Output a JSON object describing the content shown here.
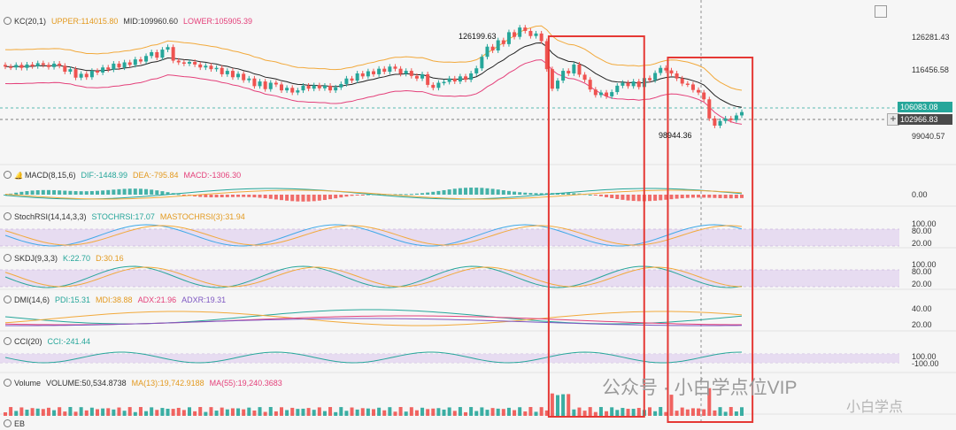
{
  "colors": {
    "up": "#26a69a",
    "down": "#ef5350",
    "kc_upper": "#f2a93b",
    "kc_mid": "#222222",
    "kc_lower": "#e4407a",
    "highlight_box": "#e53935",
    "dif": "#26a69a",
    "dea": "#f2a93b",
    "rsi_k": "#3fa9e8",
    "rsi_d": "#f2a93b",
    "skdj_k": "#26a69a",
    "skdj_d": "#f2a93b",
    "pdi": "#26a69a",
    "mdi": "#f2a93b",
    "adx": "#e4407a",
    "adxr": "#7e57c2",
    "cci": "#26a69a",
    "band": "#e4d6f0"
  },
  "panels": {
    "kc": {
      "name": "KC(20,1)",
      "upper": "UPPER:114015.80",
      "mid": "MID:109960.60",
      "lower": "LOWER:105905.39"
    },
    "macd": {
      "name": "MACD(8,15,6)",
      "dif": "DIF:-1448.99",
      "dea": "DEA:-795.84",
      "macd": "MACD:-1306.30"
    },
    "stochrsi": {
      "name": "StochRSI(14,14,3,3)",
      "k": "STOCHRSI:17.07",
      "d": "MASTOCHRSI(3):31.94"
    },
    "skdj": {
      "name": "SKDJ(9,3,3)",
      "k": "K:22.70",
      "d": "D:30.16"
    },
    "dmi": {
      "name": "DMI(14,6)",
      "pdi": "PDI:15.31",
      "mdi": "MDI:38.88",
      "adx": "ADX:21.96",
      "adxr": "ADXR:19.31"
    },
    "cci": {
      "name": "CCI(20)",
      "cci": "CCI:-241.44"
    },
    "volume": {
      "name": "Volume",
      "vol": "VOLUME:50,534.8738",
      "ma13": "MA(13):19,742.9188",
      "ma55": "MA(55):19,240.3683"
    },
    "next": {
      "name": "EB"
    }
  },
  "price_axis": {
    "ticks": [
      "126281.43",
      "116456.58",
      "99040.57"
    ],
    "last_price": "106083.08",
    "cross_price": "102966.83"
  },
  "macd_axis": {
    "ticks": [
      "0.00"
    ]
  },
  "stochrsi_axis": {
    "ticks": [
      "100.00",
      "80.00",
      "20.00"
    ]
  },
  "skdj_axis": {
    "ticks": [
      "100.00",
      "80.00",
      "20.00"
    ]
  },
  "dmi_axis": {
    "ticks": [
      "40.00",
      "20.00"
    ]
  },
  "cci_axis": {
    "ticks": [
      "100.00",
      "-100.00"
    ]
  },
  "annotations": {
    "high": "126199.63",
    "low": "98944.36"
  },
  "watermark": {
    "main": "公众号 · 小白学点位VIP",
    "corner": "小白学点"
  },
  "chart_data": {
    "type": "candlestick",
    "price_range": [
      95000,
      130000
    ],
    "closes": [
      116400,
      116200,
      116800,
      116100,
      116900,
      116500,
      117200,
      116800,
      116300,
      117100,
      116600,
      115200,
      115800,
      113800,
      114700,
      113900,
      115400,
      115000,
      116200,
      115700,
      117100,
      116200,
      117400,
      116800,
      118100,
      117600,
      118900,
      119800,
      118500,
      120400,
      121000,
      117800,
      117400,
      117100,
      117500,
      116900,
      116200,
      116600,
      115800,
      116100,
      114600,
      115400,
      113900,
      114700,
      113200,
      113600,
      111800,
      112900,
      111100,
      112600,
      112200,
      110800,
      111400,
      110300,
      110800,
      111900,
      111200,
      112000,
      111300,
      111900,
      110800,
      111500,
      112300,
      113600,
      113100,
      114800,
      114100,
      115300,
      114600,
      115900,
      115200,
      116400,
      115900,
      114700,
      115400,
      114200,
      113600,
      114600,
      112100,
      111400,
      112600,
      112800,
      113600,
      112900,
      114100,
      113300,
      114800,
      116000,
      118700,
      121100,
      120200,
      122600,
      121700,
      124500,
      123400,
      125600,
      124800,
      123600,
      124200,
      122400,
      115800,
      111200,
      113100,
      115400,
      114800,
      116900,
      114500,
      113300,
      111000,
      109700,
      110300,
      109400,
      110400,
      111900,
      112600,
      111800,
      112900,
      111600,
      113700,
      113200,
      114900,
      116100,
      115500,
      114800,
      113600,
      112400,
      112200,
      110900,
      110300,
      108700,
      104200,
      102500,
      103600,
      104200,
      103800,
      104900,
      105700
    ],
    "opens": [
      116800,
      116400,
      116200,
      116800,
      116100,
      116900,
      116500,
      117200,
      116800,
      116300,
      117100,
      116600,
      115200,
      115800,
      113800,
      114700,
      113900,
      115400,
      115000,
      116200,
      115700,
      117100,
      116200,
      117400,
      116800,
      118100,
      117600,
      118900,
      119800,
      118500,
      120400,
      121000,
      117800,
      117400,
      117100,
      117500,
      116900,
      116200,
      116600,
      115800,
      116100,
      114600,
      115400,
      113900,
      114700,
      113200,
      113600,
      111800,
      112900,
      111100,
      112600,
      112200,
      110800,
      111400,
      110300,
      110800,
      111900,
      111200,
      112000,
      111300,
      111900,
      110800,
      111500,
      112300,
      113600,
      113100,
      114800,
      114100,
      115300,
      114600,
      115900,
      115200,
      116400,
      115900,
      114700,
      115400,
      114200,
      113600,
      114600,
      112100,
      111400,
      112600,
      112800,
      113600,
      112900,
      114100,
      113300,
      114800,
      116000,
      118700,
      121100,
      120200,
      122600,
      121700,
      124500,
      123400,
      125600,
      124800,
      123600,
      124200,
      122400,
      115800,
      111200,
      113100,
      115400,
      114800,
      116900,
      114500,
      113300,
      111000,
      109700,
      110300,
      109400,
      110400,
      111900,
      112600,
      111800,
      112900,
      111600,
      113700,
      113200,
      114900,
      116100,
      115500,
      114800,
      113600,
      112400,
      112200,
      110900,
      110300,
      108700,
      104200,
      102500,
      103600,
      104200,
      103800,
      104900
    ],
    "kc_upper": "UPPER:114015.80",
    "kc_mid": "MID:109960.60",
    "kc_lower": "LOWER:105905.39",
    "high_label": "126199.63",
    "low_label": "98944.36",
    "highlight_boxes": [
      {
        "from_index": 101,
        "to_index": 117
      },
      {
        "from_index": 123,
        "to_index": 137
      }
    ]
  }
}
